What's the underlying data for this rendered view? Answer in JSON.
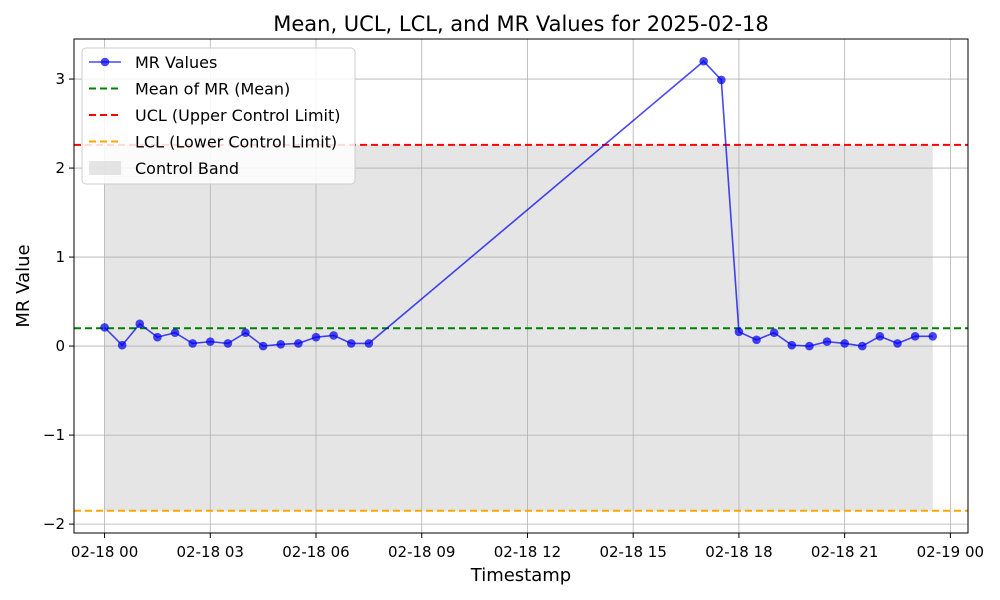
{
  "chart_data": {
    "type": "line",
    "title": "Mean, UCL, LCL, and MR Values for 2025-02-18",
    "xlabel": "Timestamp",
    "ylabel": "MR Value",
    "xlim": [
      "2025-02-17 23:08",
      "2025-02-19 00:30"
    ],
    "ylim": [
      -2.1,
      3.45
    ],
    "grid": true,
    "legend_position": "top-left",
    "x_tick_labels": [
      "02-18 00",
      "02-18 03",
      "02-18 06",
      "02-18 09",
      "02-18 12",
      "02-18 15",
      "02-18 18",
      "02-18 21",
      "02-19 00"
    ],
    "x_ticks": [
      "2025-02-18 00:00",
      "2025-02-18 03:00",
      "2025-02-18 06:00",
      "2025-02-18 09:00",
      "2025-02-18 12:00",
      "2025-02-18 15:00",
      "2025-02-18 18:00",
      "2025-02-18 21:00",
      "2025-02-19 00:00"
    ],
    "y_ticks": [
      -2,
      -1,
      0,
      1,
      2,
      3
    ],
    "y_tick_labels": [
      "−2",
      "−1",
      "0",
      "1",
      "2",
      "3"
    ],
    "series": [
      {
        "name": "MR Values",
        "color": "#0000ee",
        "x": [
          "2025-02-18 00:00",
          "2025-02-18 00:30",
          "2025-02-18 01:00",
          "2025-02-18 01:30",
          "2025-02-18 02:00",
          "2025-02-18 02:30",
          "2025-02-18 03:00",
          "2025-02-18 03:30",
          "2025-02-18 04:00",
          "2025-02-18 04:30",
          "2025-02-18 05:00",
          "2025-02-18 05:30",
          "2025-02-18 06:00",
          "2025-02-18 06:30",
          "2025-02-18 07:00",
          "2025-02-18 07:30",
          "2025-02-18 17:00",
          "2025-02-18 17:30",
          "2025-02-18 18:00",
          "2025-02-18 18:30",
          "2025-02-18 19:00",
          "2025-02-18 19:30",
          "2025-02-18 20:00",
          "2025-02-18 20:30",
          "2025-02-18 21:00",
          "2025-02-18 21:30",
          "2025-02-18 22:00",
          "2025-02-18 22:30",
          "2025-02-18 23:00",
          "2025-02-18 23:30"
        ],
        "y": [
          0.21,
          0.01,
          0.25,
          0.1,
          0.15,
          0.03,
          0.05,
          0.03,
          0.15,
          0.0,
          0.02,
          0.03,
          0.1,
          0.12,
          0.03,
          0.03,
          3.2,
          2.99,
          0.16,
          0.07,
          0.15,
          0.01,
          0.0,
          0.05,
          0.03,
          0.0,
          0.11,
          0.03,
          0.11,
          0.11
        ]
      },
      {
        "name": "Mean of MR (Mean)",
        "color": "#008000",
        "style": "dashed",
        "value": 0.2
      },
      {
        "name": "UCL (Upper Control Limit)",
        "color": "#ff0000",
        "style": "dashed",
        "value": 2.26
      },
      {
        "name": "LCL (Lower Control Limit)",
        "color": "#ffa500",
        "style": "dashed",
        "value": -1.85
      },
      {
        "name": "Control Band",
        "color": "#d3d3d3",
        "style": "band",
        "from": -1.85,
        "to": 2.26,
        "x_range": [
          "2025-02-18 00:00",
          "2025-02-18 23:30"
        ]
      }
    ]
  }
}
